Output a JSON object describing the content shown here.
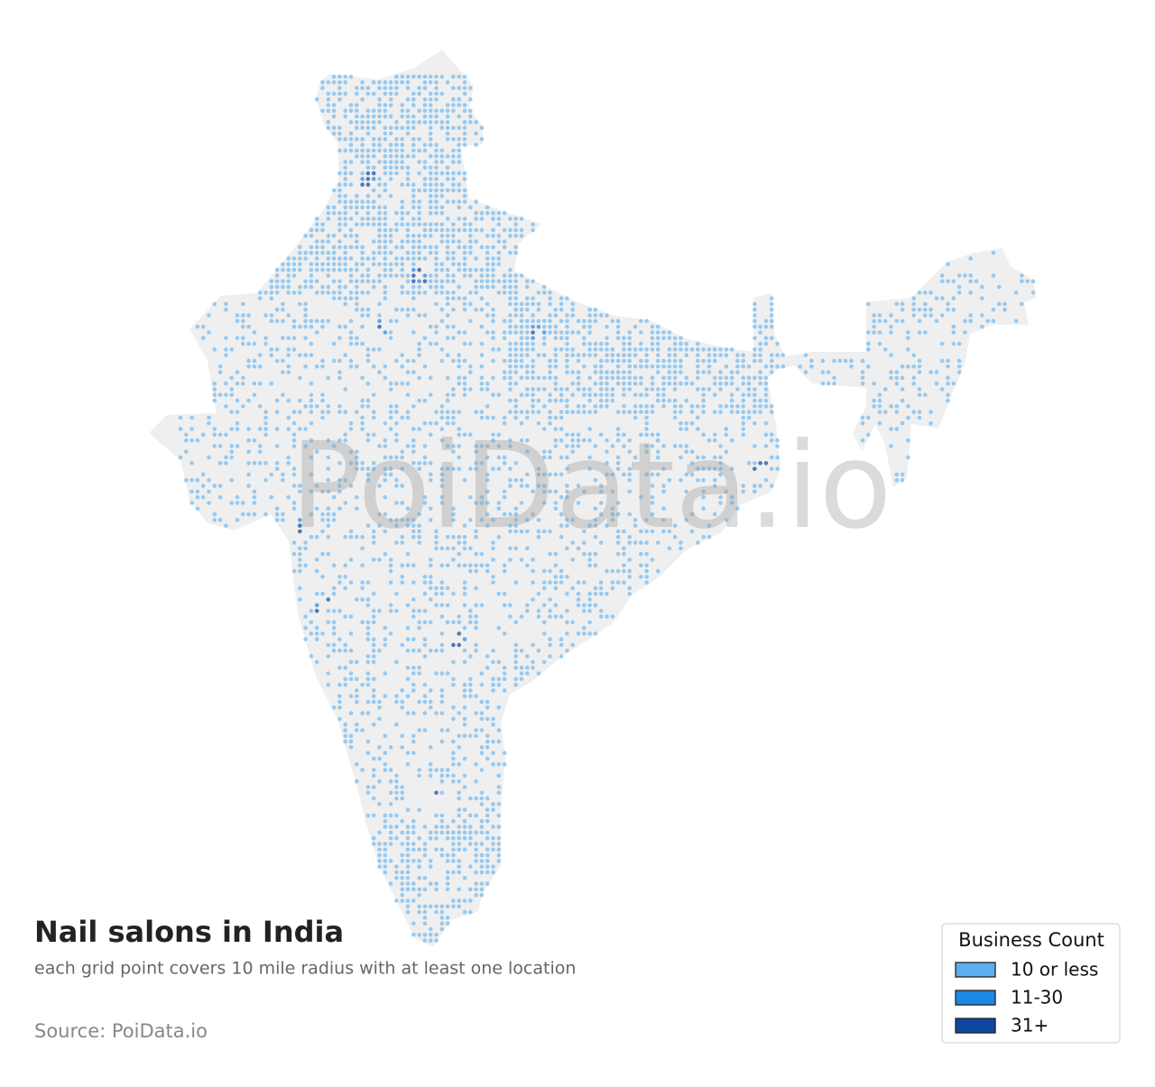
{
  "title": "Nail salons in India",
  "subtitle": "each grid point covers 10 mile radius with at least one location",
  "source": "Source: PoiData.io",
  "watermark": "PoiData.io",
  "legend": {
    "title": "Business Count",
    "items": [
      {
        "label": "10 or less",
        "color": "#5aaff0"
      },
      {
        "label": "11-30",
        "color": "#1e88e5"
      },
      {
        "label": "31+",
        "color": "#0d47a1"
      }
    ]
  }
}
